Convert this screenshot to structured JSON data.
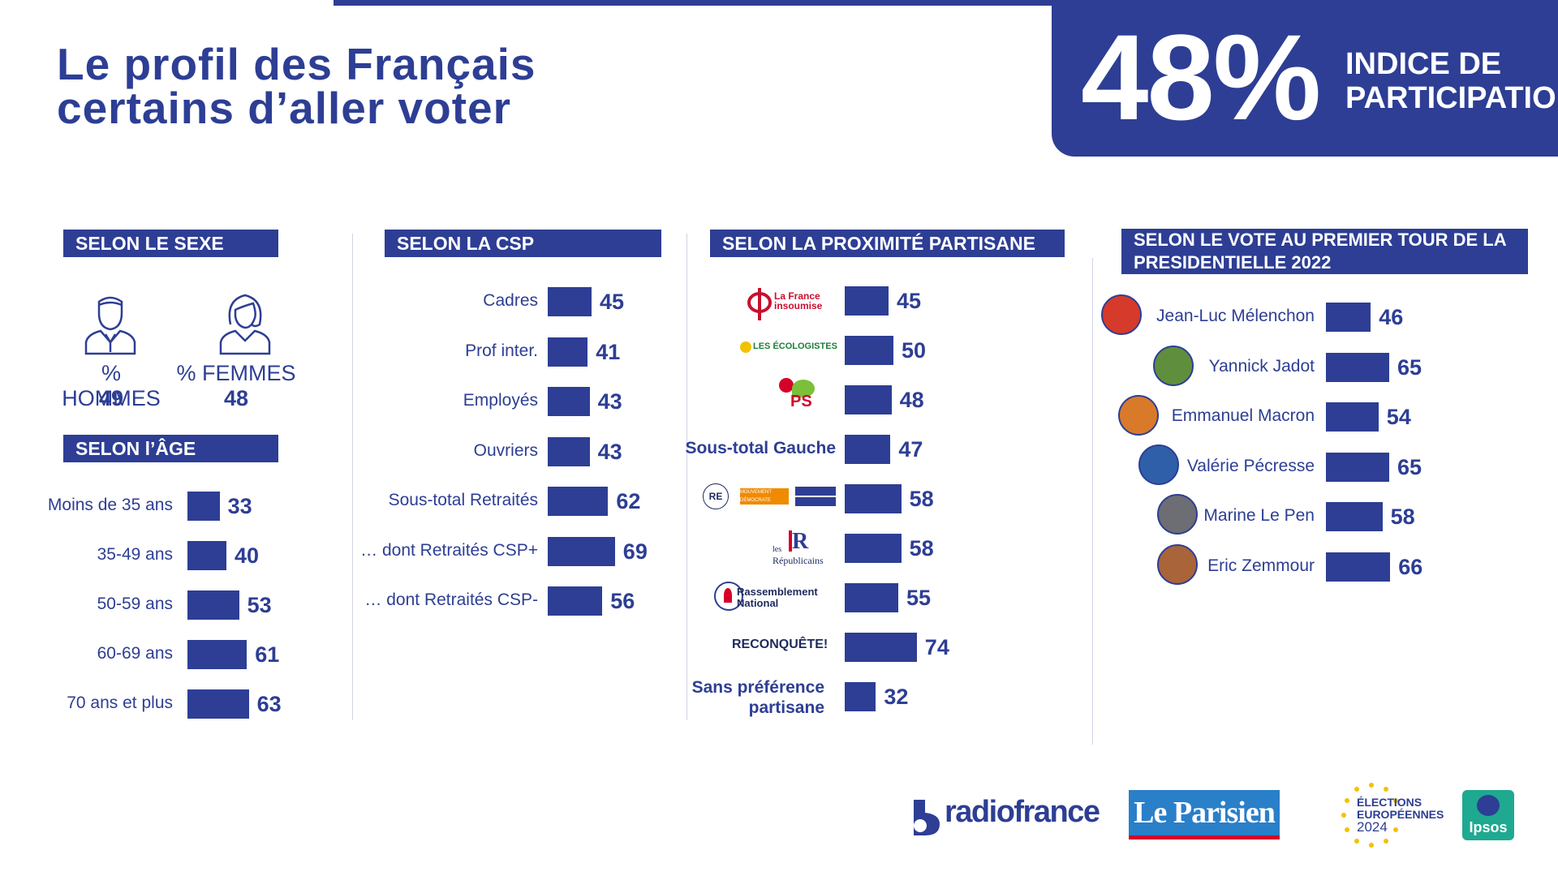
{
  "page": {
    "title_line1": "Le profil des Français",
    "title_line2": "certains d’aller voter",
    "kpi_value": "48%",
    "kpi_label_line1": "INDICE DE",
    "kpi_label_line2": "PARTICIPATION"
  },
  "sections": {
    "sexe": "SELON LE SEXE",
    "age": "SELON l’ÂGE",
    "csp": "SELON LA CSP",
    "partisan": "SELON LA PROXIMITÉ PARTISANE",
    "vote2022_line1": "SELON LE VOTE AU PREMIER TOUR DE LA",
    "vote2022_line2": "PRESIDENTIELLE 2022"
  },
  "sexe": {
    "hommes_label": "% HOMMES",
    "hommes_value": "49",
    "femmes_label": "% FEMMES",
    "femmes_value": "48"
  },
  "party_logos": {
    "lfi_line1": "La France",
    "lfi_line2": "insoumise",
    "ecolo": "LES ÉCOLOGISTES",
    "ps": "PS",
    "re": "RE",
    "modem": "MOUVEMENT DÉMOCRATE",
    "lr_line1": "les",
    "lr_line2": "Républicains",
    "rn_line1": "Rassemblement",
    "rn_line2": "National",
    "reconquete": "RECONQUÊTE!"
  },
  "footer": {
    "radiofrance": "radiofrance",
    "leparisien": "Le Parisien",
    "elections_line1": "ÉLECTIONS",
    "elections_line2": "EUROPÉENNES",
    "elections_line3": "2024",
    "ipsos": "Ipsos"
  },
  "colors": {
    "navy": "#2d3e94",
    "white": "#ffffff"
  },
  "chart_data": [
    {
      "type": "bar",
      "title": "SELON l’ÂGE",
      "categories": [
        "Moins de 35 ans",
        "35-49 ans",
        "50-59 ans",
        "60-69 ans",
        "70 ans et plus"
      ],
      "values": [
        33,
        40,
        53,
        61,
        63
      ]
    },
    {
      "type": "bar",
      "title": "SELON LA CSP",
      "categories": [
        "Cadres",
        "Prof inter.",
        "Employés",
        "Ouvriers",
        "Sous-total Retraités",
        "… dont Retraités CSP+",
        "… dont Retraités CSP-"
      ],
      "values": [
        45,
        41,
        43,
        43,
        62,
        69,
        56
      ]
    },
    {
      "type": "bar",
      "title": "SELON LA PROXIMITÉ PARTISANE",
      "categories": [
        "La France insoumise",
        "Les Écologistes",
        "PS",
        "Sous-total Gauche",
        "Renaissance / MoDem / Horizons",
        "Les Républicains",
        "Rassemblement National",
        "Reconquête!",
        "Sans préférence partisane"
      ],
      "values": [
        45,
        50,
        48,
        47,
        58,
        58,
        55,
        74,
        32
      ]
    },
    {
      "type": "bar",
      "title": "SELON LE VOTE AU PREMIER TOUR DE LA PRESIDENTIELLE 2022",
      "categories": [
        "Jean-Luc Mélenchon",
        "Yannick Jadot",
        "Emmanuel Macron",
        "Valérie Pécresse",
        "Marine Le Pen",
        "Eric Zemmour"
      ],
      "values": [
        46,
        65,
        54,
        65,
        58,
        66
      ]
    }
  ]
}
